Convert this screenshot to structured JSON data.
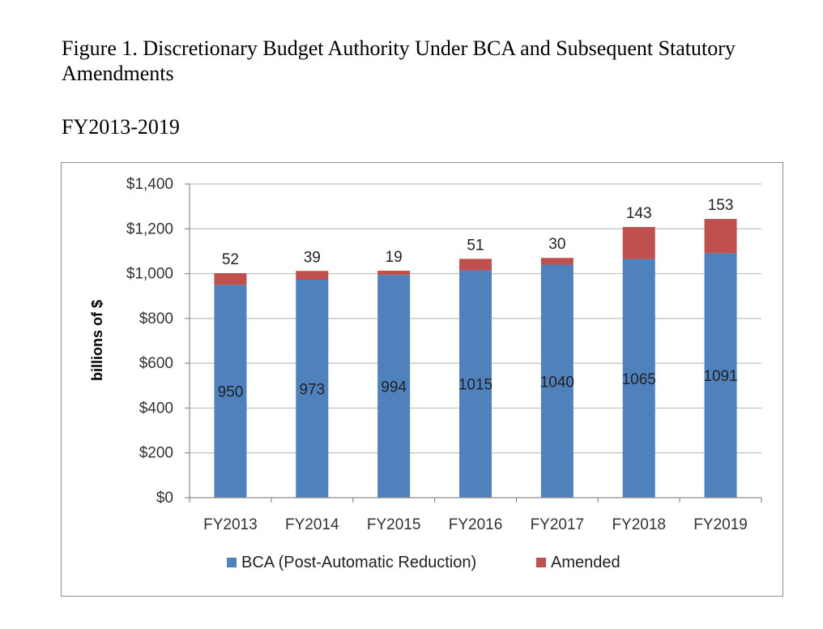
{
  "figure": {
    "title": "Figure 1. Discretionary Budget Authority Under BCA and Subsequent Statutory Amendments",
    "subtitle": "FY2013-2019"
  },
  "chart_data": {
    "type": "bar",
    "stacked": true,
    "categories": [
      "FY2013",
      "FY2014",
      "FY2015",
      "FY2016",
      "FY2017",
      "FY2018",
      "FY2019"
    ],
    "series": [
      {
        "name": "BCA (Post-Automatic Reduction)",
        "values": [
          950,
          973,
          994,
          1015,
          1040,
          1065,
          1091
        ],
        "color": "#4f81bd"
      },
      {
        "name": "Amended",
        "values": [
          52,
          39,
          19,
          51,
          30,
          143,
          153
        ],
        "color": "#c0504d"
      }
    ],
    "ylabel": "billions of $",
    "ylim": [
      0,
      1400
    ],
    "yticks": [
      0,
      200,
      400,
      600,
      800,
      1000,
      1200,
      1400
    ],
    "ytick_labels": [
      "$0",
      "$200",
      "$400",
      "$600",
      "$800",
      "$1,000",
      "$1,200",
      "$1,400"
    ],
    "grid": true,
    "legend_position": "bottom"
  }
}
